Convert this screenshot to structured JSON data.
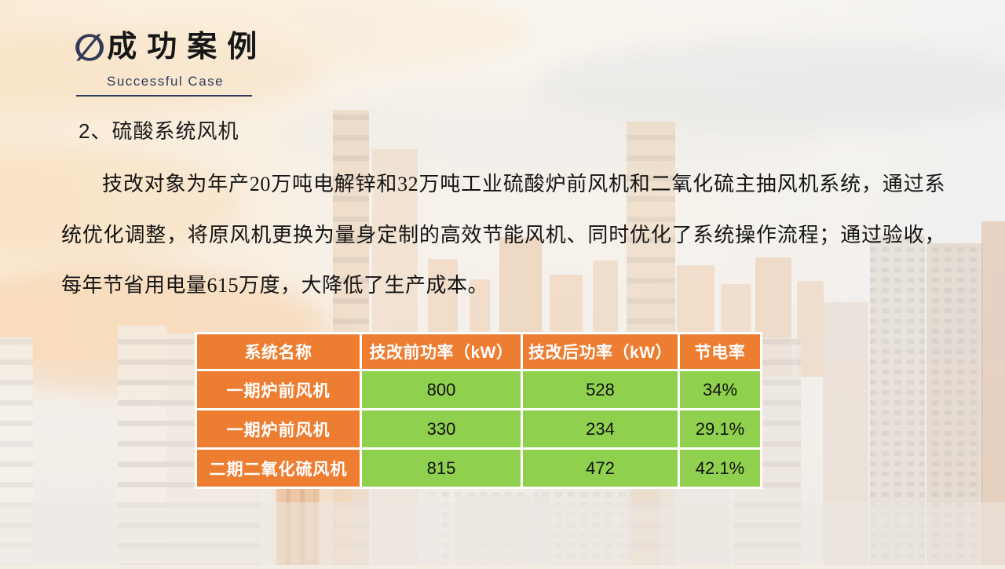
{
  "slide": {
    "title_icon": "∅",
    "title": "成功案例",
    "subtitle": "Successful Case",
    "section_heading": "2、硫酸系统风机",
    "paragraph_segments": [
      {
        "text": "技改对象为年产"
      },
      {
        "text": "20",
        "serif": true
      },
      {
        "text": "万吨电解锌和"
      },
      {
        "text": "32",
        "serif": true
      },
      {
        "text": "万吨工业硫酸炉前风机和二氧化硫主抽风机系统，通过系统优化调整，将原风机更换为量身定制的高效节能风机、同时优化了系统操作流程；通过验收，每年节省用电量"
      },
      {
        "text": "615",
        "serif": true
      },
      {
        "text": "万度，大降低了生产成本。"
      }
    ]
  },
  "table": {
    "headers": [
      "系统名称",
      "技改前功率（kW）",
      "技改后功率（kW）",
      "节电率"
    ],
    "rows": [
      [
        "一期炉前风机",
        "800",
        "528",
        "34%"
      ],
      [
        "一期炉前风机",
        "330",
        "234",
        "29.1%"
      ],
      [
        "二期二氧化硫风机",
        "815",
        "472",
        "42.1%"
      ]
    ]
  },
  "colors": {
    "header_orange": "#ED7D31",
    "cell_green": "#90D04F",
    "accent_navy": "#2E3A5E"
  }
}
